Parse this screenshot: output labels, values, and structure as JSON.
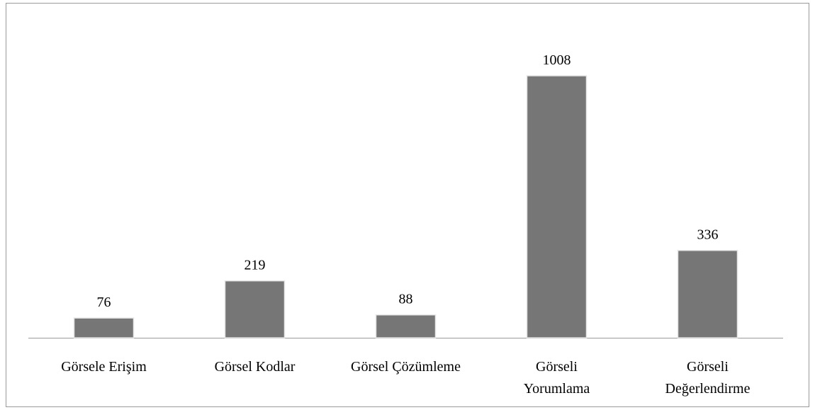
{
  "chart_data": {
    "type": "bar",
    "categories": [
      "Görsele Erişim",
      "Görsel Kodlar",
      "Görsel Çözümleme",
      "Görseli\nYorumlama",
      "Görseli\nDeğerlendirme"
    ],
    "values": [
      76,
      219,
      88,
      1008,
      336
    ],
    "color": "#767676"
  }
}
